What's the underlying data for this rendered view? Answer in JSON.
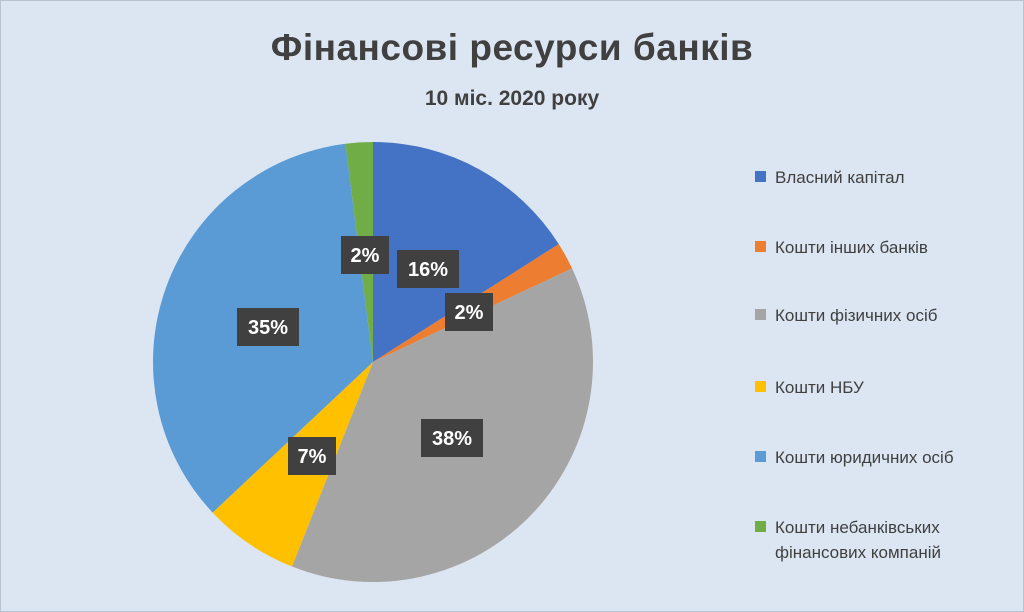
{
  "chart_data": {
    "type": "pie",
    "title": "Фінансові ресурси банків",
    "subtitle": "10 міс. 2020 року",
    "slices": [
      {
        "label": "Власний капітал",
        "value": 16,
        "display": "16%",
        "color": "#4472c4"
      },
      {
        "label": "Кошти інших банків",
        "value": 2,
        "display": "2%",
        "color": "#ed7d31"
      },
      {
        "label": "Кошти фізичних осіб",
        "value": 38,
        "display": "38%",
        "color": "#a5a5a5"
      },
      {
        "label": "Кошти НБУ",
        "value": 7,
        "display": "7%",
        "color": "#ffc000"
      },
      {
        "label": "Кошти юридичних осіб",
        "value": 35,
        "display": "35%",
        "color": "#5b9bd5"
      },
      {
        "label": "Кошти небанківських фінансових компаній",
        "value": 2,
        "display": "2%",
        "color": "#70ad47"
      }
    ],
    "legend_position": "right",
    "data_labels": true
  }
}
